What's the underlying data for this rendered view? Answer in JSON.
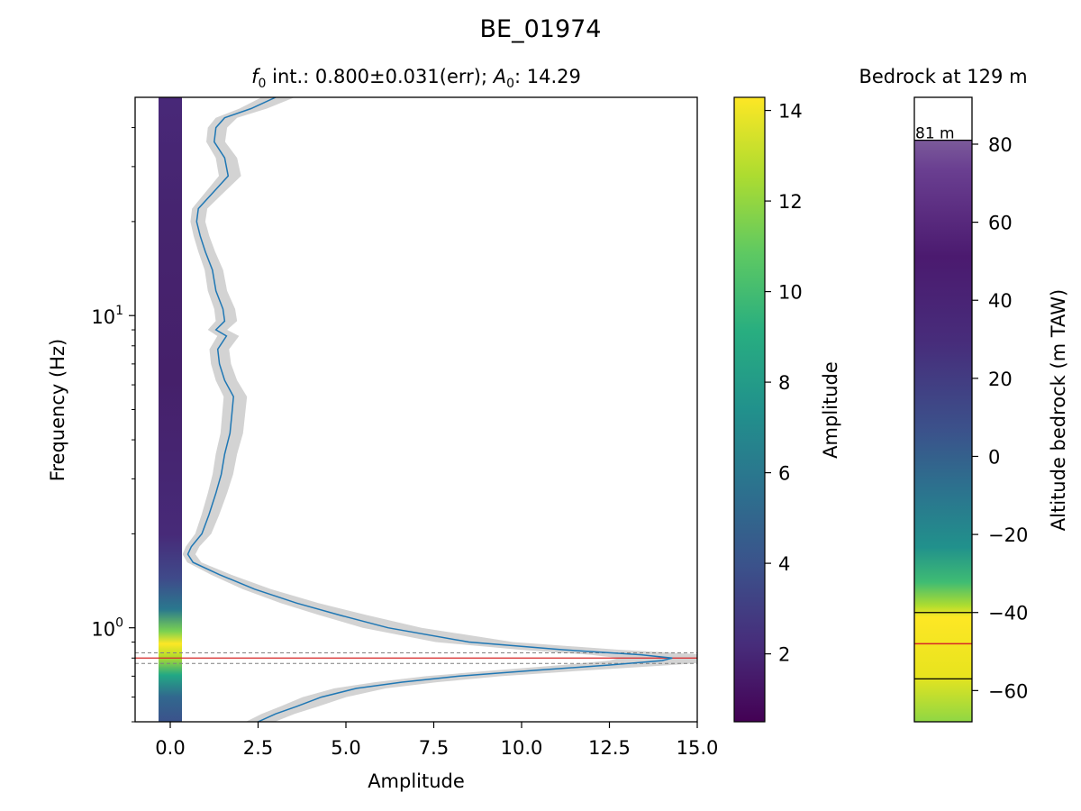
{
  "figure": {
    "title": "BE_01974"
  },
  "chart_data": [
    {
      "type": "line",
      "panel": "hvsr",
      "subtitle": {
        "f0_symbol": "f",
        "f0_sub": "0",
        "mid": " int.: 0.800±0.031(err); ",
        "a0_symbol": "A",
        "a0_sub": "0",
        "end": ": 14.29"
      },
      "xlabel": "Amplitude",
      "ylabel": "Frequency (Hz)",
      "xlim": [
        -1,
        15
      ],
      "ylim": [
        0.5,
        50
      ],
      "yscale": "log",
      "xticks": [
        0.0,
        2.5,
        5.0,
        7.5,
        10.0,
        12.5,
        15.0
      ],
      "xtick_labels": [
        "0.0",
        "2.5",
        "5.0",
        "7.5",
        "10.0",
        "12.5",
        "15.0"
      ],
      "ytick_major": [
        {
          "base": "10",
          "exp": "0",
          "value": 1
        },
        {
          "base": "10",
          "exp": "1",
          "value": 10
        }
      ],
      "f0": 0.8,
      "f0_err": 0.031,
      "a0": 14.29,
      "series": [
        {
          "curve": "mean",
          "color": "#1f77b4",
          "points": [
            [
              2.5,
              0.5
            ],
            [
              3.0,
              0.53
            ],
            [
              3.6,
              0.56
            ],
            [
              4.3,
              0.6
            ],
            [
              5.3,
              0.64
            ],
            [
              6.6,
              0.67
            ],
            [
              8.2,
              0.7
            ],
            [
              10.3,
              0.73
            ],
            [
              12.5,
              0.76
            ],
            [
              14.0,
              0.785
            ],
            [
              14.29,
              0.8
            ],
            [
              13.4,
              0.82
            ],
            [
              11.2,
              0.85
            ],
            [
              8.5,
              0.9
            ],
            [
              6.2,
              1.0
            ],
            [
              4.8,
              1.1
            ],
            [
              3.6,
              1.2
            ],
            [
              2.4,
              1.33
            ],
            [
              1.4,
              1.48
            ],
            [
              0.65,
              1.62
            ],
            [
              0.5,
              1.72
            ],
            [
              0.6,
              1.82
            ],
            [
              0.9,
              2.0
            ],
            [
              1.1,
              2.3
            ],
            [
              1.3,
              2.7
            ],
            [
              1.45,
              3.1
            ],
            [
              1.55,
              3.6
            ],
            [
              1.7,
              4.2
            ],
            [
              1.75,
              4.8
            ],
            [
              1.8,
              5.5
            ],
            [
              1.55,
              6.2
            ],
            [
              1.4,
              7.0
            ],
            [
              1.35,
              7.8
            ],
            [
              1.6,
              8.6
            ],
            [
              1.3,
              9.0
            ],
            [
              1.55,
              9.6
            ],
            [
              1.5,
              10.5
            ],
            [
              1.3,
              12.0
            ],
            [
              1.2,
              14.0
            ],
            [
              1.0,
              16.0
            ],
            [
              0.85,
              18.0
            ],
            [
              0.75,
              20.0
            ],
            [
              0.8,
              22.0
            ],
            [
              1.25,
              25.0
            ],
            [
              1.65,
              28.0
            ],
            [
              1.55,
              32.0
            ],
            [
              1.25,
              36.0
            ],
            [
              1.3,
              40.0
            ],
            [
              1.55,
              43.0
            ],
            [
              2.3,
              46.0
            ],
            [
              3.0,
              50.0
            ]
          ]
        },
        {
          "curve": "reference",
          "color": "#d62728",
          "constant_y": 0.8
        },
        {
          "curve": "error-bounds",
          "color": "#808080",
          "constant_y": [
            0.769,
            0.831
          ]
        }
      ],
      "band_color": "#d3d3d3"
    },
    {
      "type": "heatmap",
      "panel": "frequency-strip",
      "x_position": 0.0,
      "x_width": 0.6,
      "colormap": "viridis",
      "colorbar": {
        "label": "Amplitude",
        "min": 0.5,
        "max": 14.29,
        "ticks": [
          2,
          4,
          6,
          8,
          10,
          12,
          14
        ],
        "tick_labels": [
          "2",
          "4",
          "6",
          "8",
          "10",
          "12",
          "14"
        ]
      }
    },
    {
      "type": "heatmap",
      "panel": "bedrock-column",
      "title": "Bedrock at 129 m",
      "ylabel": "Altitude bedrock (m TAW)",
      "ylim": [
        -68,
        92
      ],
      "surface_altitude": 81,
      "surface_label": "81 m",
      "bedrock_altitude": -48,
      "bedrock_bounds": [
        -57,
        -40
      ],
      "ticks": [
        80,
        60,
        40,
        20,
        0,
        -20,
        -40,
        -60
      ],
      "tick_labels": [
        "80",
        "60",
        "40",
        "20",
        "0",
        "−20",
        "−40",
        "−60"
      ]
    }
  ],
  "colors": {
    "mean_line": "#1f77b4",
    "f0_line": "#d62728",
    "band": "#d3d3d3",
    "err_lines": "#808080"
  }
}
